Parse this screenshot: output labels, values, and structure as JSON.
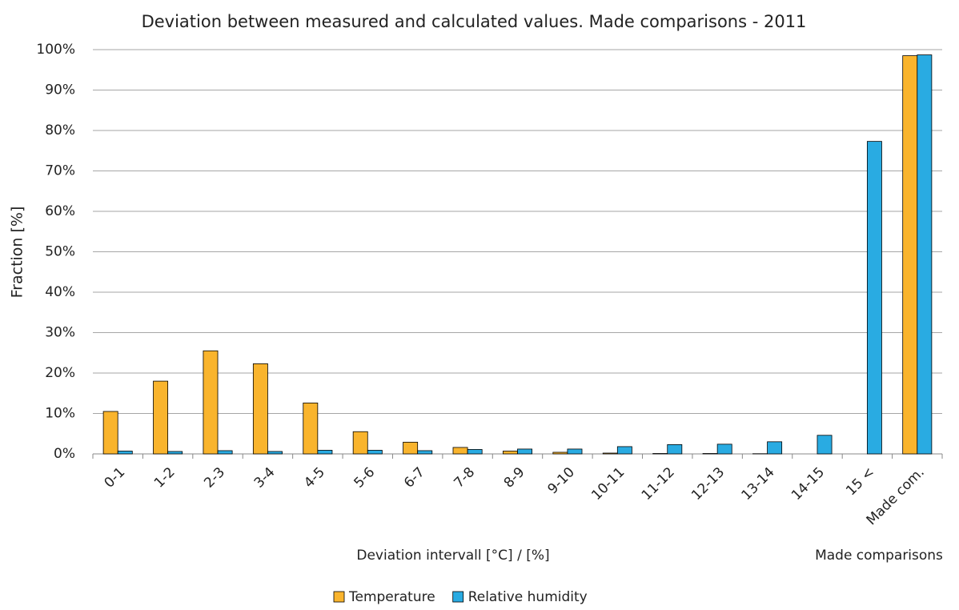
{
  "chart_data": {
    "type": "bar",
    "title": "Deviation between measured and calculated values. Made comparisons - 2011",
    "ylabel": "Fraction [%]",
    "xlabel": "Deviation intervall [°C] / [%]",
    "annotation": "Made comparisons",
    "categories": [
      "0-1",
      "1-2",
      "2-3",
      "3-4",
      "4-5",
      "5-6",
      "6-7",
      "7-8",
      "8-9",
      "9-10",
      "10-11",
      "11-12",
      "12-13",
      "13-14",
      "14-15",
      "15 <",
      "Made com."
    ],
    "series": [
      {
        "name": "Temperature",
        "color": "#f9b42d",
        "values": [
          10.5,
          18,
          25.5,
          22.3,
          12.6,
          5.5,
          2.9,
          1.6,
          0.7,
          0.4,
          0.2,
          0.1,
          0.1,
          0.05,
          0,
          0,
          98.5
        ]
      },
      {
        "name": "Relative humidity",
        "color": "#29abe2",
        "values": [
          0.7,
          0.6,
          0.8,
          0.6,
          0.9,
          0.9,
          0.8,
          1.1,
          1.2,
          1.2,
          1.8,
          2.3,
          2.4,
          3.0,
          4.6,
          77.3,
          98.7
        ]
      }
    ],
    "ylim": [
      0,
      100
    ],
    "yticks": [
      {
        "value": 0,
        "label": "0%"
      },
      {
        "value": 10,
        "label": "10%"
      },
      {
        "value": 20,
        "label": "20%"
      },
      {
        "value": 30,
        "label": "30%"
      },
      {
        "value": 40,
        "label": "40%"
      },
      {
        "value": 50,
        "label": "50%"
      },
      {
        "value": 60,
        "label": "60%"
      },
      {
        "value": 70,
        "label": "70%"
      },
      {
        "value": 80,
        "label": "80%"
      },
      {
        "value": 90,
        "label": "90%"
      },
      {
        "value": 100,
        "label": "100%"
      }
    ],
    "grid": true,
    "legend": "bottom"
  }
}
